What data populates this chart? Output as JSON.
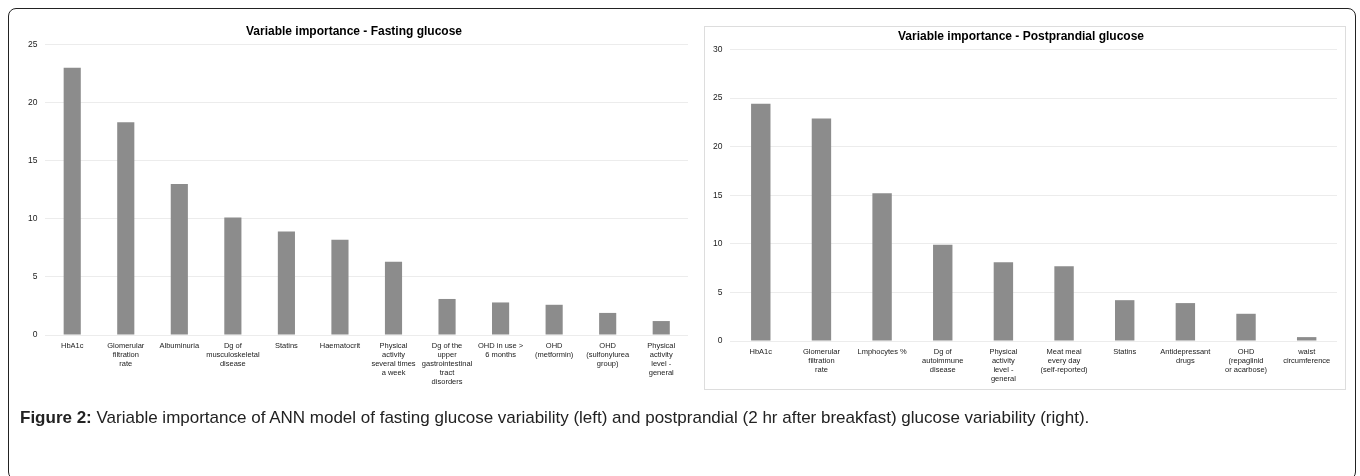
{
  "chart_data": [
    {
      "type": "bar",
      "title": "Variable importance - Fasting glucose",
      "categories": [
        "HbA1c",
        "Glomerular filtration rate",
        "Albuminuria",
        "Dg of musculoskeletal disease",
        "Statins",
        "Haematocrit",
        "Physical activity several times a week",
        "Dg of the upper gastrointestinal tract disorders",
        "OHD in use > 6 months",
        "OHD (metformin)",
        "OHD (sulfonylurea group)",
        "Physical activity level - general"
      ],
      "values": [
        23.0,
        18.3,
        13.0,
        10.1,
        8.9,
        8.2,
        6.3,
        3.1,
        2.8,
        2.6,
        1.9,
        1.2
      ],
      "color": "#8c8c8c",
      "ylim": [
        0,
        25
      ],
      "yticks": [
        0,
        5,
        10,
        15,
        20,
        25
      ],
      "grid": "y"
    },
    {
      "type": "bar",
      "title": "Variable importance - Postprandial glucose",
      "categories": [
        "HbA1c",
        "Glomerular filtration rate",
        "Lmphocytes %",
        "Dg of autoimmune disease",
        "Physical activity level - general",
        "Meat meal every day (self-reported)",
        "Statins",
        "Antidepressant drugs",
        "OHD (repaglinid or acarbose)",
        "waist circumference"
      ],
      "values": [
        24.4,
        22.9,
        15.2,
        9.9,
        8.1,
        7.7,
        4.2,
        3.9,
        2.8,
        0.4
      ],
      "color": "#8c8c8c",
      "ylim": [
        0,
        30
      ],
      "yticks": [
        0,
        5,
        10,
        15,
        20,
        25,
        30
      ],
      "grid": "y",
      "annotations": [
        "Figure 2:",
        "Variable importance of ANN model of fasting glucose variability (left) and postprandial (2 hr after breakfast) glucose variability (right)."
      ]
    }
  ]
}
